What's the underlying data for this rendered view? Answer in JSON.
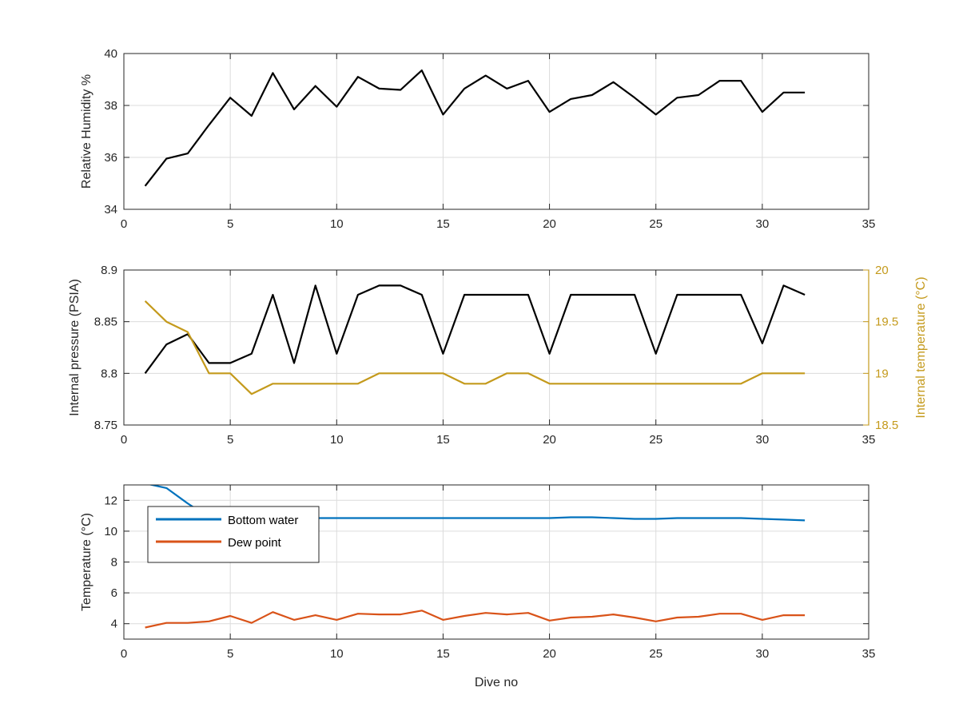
{
  "chart_data": [
    {
      "type": "line",
      "xlabel": "",
      "ylabel": "Relative Humidity %",
      "xlim": [
        0,
        35
      ],
      "ylim": [
        34,
        40
      ],
      "xticks": [
        0,
        5,
        10,
        15,
        20,
        25,
        30,
        35
      ],
      "yticks": [
        34,
        36,
        38,
        40
      ],
      "grid": true,
      "series": [
        {
          "axis": "left",
          "color": "#000000",
          "x": [
            1,
            2,
            3,
            4,
            5,
            6,
            7,
            8,
            9,
            10,
            11,
            12,
            13,
            14,
            15,
            16,
            17,
            18,
            19,
            20,
            21,
            22,
            23,
            24,
            25,
            26,
            27,
            28,
            29,
            30,
            31,
            32
          ],
          "values": [
            34.9,
            35.95,
            36.15,
            37.25,
            38.3,
            37.6,
            39.25,
            37.85,
            38.75,
            37.95,
            39.1,
            38.65,
            38.6,
            39.35,
            37.65,
            38.65,
            39.15,
            38.65,
            38.95,
            37.75,
            38.25,
            38.4,
            38.9,
            38.3,
            37.65,
            38.3,
            38.4,
            38.95,
            38.95,
            37.75,
            38.5,
            38.5
          ]
        }
      ]
    },
    {
      "type": "line",
      "xlabel": "",
      "ylabel": "Internal pressure (PSIA)",
      "ylabel_right": "Internal temperature (°C)",
      "xlim": [
        0,
        35
      ],
      "ylim": [
        8.75,
        8.9
      ],
      "ylim_right": [
        18.5,
        20
      ],
      "xticks": [
        0,
        5,
        10,
        15,
        20,
        25,
        30,
        35
      ],
      "yticks": [
        8.75,
        8.8,
        8.85,
        8.9
      ],
      "yticks_right": [
        18.5,
        19,
        19.5,
        20
      ],
      "ytick_labels": [
        "8.75",
        "8.8",
        "8.85",
        "8.9"
      ],
      "ytick_labels_right": [
        "18.5",
        "19",
        "19.5",
        "20"
      ],
      "grid": true,
      "series": [
        {
          "axis": "left",
          "color": "#000000",
          "x": [
            1,
            2,
            3,
            4,
            5,
            6,
            7,
            8,
            9,
            10,
            11,
            12,
            13,
            14,
            15,
            16,
            17,
            18,
            19,
            20,
            21,
            22,
            23,
            24,
            25,
            26,
            27,
            28,
            29,
            30,
            31,
            32
          ],
          "values": [
            8.8,
            8.828,
            8.838,
            8.81,
            8.81,
            8.819,
            8.876,
            8.81,
            8.885,
            8.819,
            8.876,
            8.885,
            8.885,
            8.876,
            8.819,
            8.876,
            8.876,
            8.876,
            8.876,
            8.819,
            8.876,
            8.876,
            8.876,
            8.876,
            8.819,
            8.876,
            8.876,
            8.876,
            8.876,
            8.829,
            8.885,
            8.876
          ]
        },
        {
          "axis": "right",
          "color": "#c49a1c",
          "x": [
            1,
            2,
            3,
            4,
            5,
            6,
            7,
            8,
            9,
            10,
            11,
            12,
            13,
            14,
            15,
            16,
            17,
            18,
            19,
            20,
            21,
            22,
            23,
            24,
            25,
            26,
            27,
            28,
            29,
            30,
            31,
            32
          ],
          "values": [
            19.7,
            19.5,
            19.4,
            19.0,
            19.0,
            18.8,
            18.9,
            18.9,
            18.9,
            18.9,
            18.9,
            19.0,
            19.0,
            19.0,
            19.0,
            18.9,
            18.9,
            19.0,
            19.0,
            18.9,
            18.9,
            18.9,
            18.9,
            18.9,
            18.9,
            18.9,
            18.9,
            18.9,
            18.9,
            19.0,
            19.0,
            19.0
          ]
        }
      ]
    },
    {
      "type": "line",
      "xlabel": "Dive no",
      "ylabel": "Temperature (°C)",
      "xlim": [
        0,
        35
      ],
      "ylim": [
        3,
        13
      ],
      "xticks": [
        0,
        5,
        10,
        15,
        20,
        25,
        30,
        35
      ],
      "yticks": [
        4,
        6,
        8,
        10,
        12
      ],
      "grid": true,
      "legend": "upper-left",
      "series": [
        {
          "name": "Bottom water",
          "axis": "left",
          "color": "#0072bd",
          "x": [
            1,
            2,
            3,
            4,
            5,
            6,
            7,
            8,
            9,
            10,
            11,
            12,
            13,
            14,
            15,
            16,
            17,
            18,
            19,
            20,
            21,
            22,
            23,
            24,
            25,
            26,
            27,
            28,
            29,
            30,
            31,
            32
          ],
          "values": [
            13.1,
            12.8,
            11.8,
            10.9,
            10.85,
            10.85,
            10.85,
            10.85,
            10.85,
            10.85,
            10.85,
            10.85,
            10.85,
            10.85,
            10.85,
            10.85,
            10.85,
            10.85,
            10.85,
            10.85,
            10.9,
            10.9,
            10.85,
            10.8,
            10.8,
            10.85,
            10.85,
            10.85,
            10.85,
            10.8,
            10.75,
            10.7
          ]
        },
        {
          "name": "Dew point",
          "axis": "left",
          "color": "#d95319",
          "x": [
            1,
            2,
            3,
            4,
            5,
            6,
            7,
            8,
            9,
            10,
            11,
            12,
            13,
            14,
            15,
            16,
            17,
            18,
            19,
            20,
            21,
            22,
            23,
            24,
            25,
            26,
            27,
            28,
            29,
            30,
            31,
            32
          ],
          "values": [
            3.75,
            4.05,
            4.05,
            4.15,
            4.5,
            4.05,
            4.75,
            4.25,
            4.55,
            4.25,
            4.65,
            4.6,
            4.6,
            4.85,
            4.25,
            4.5,
            4.7,
            4.6,
            4.7,
            4.2,
            4.4,
            4.45,
            4.6,
            4.4,
            4.15,
            4.4,
            4.45,
            4.65,
            4.65,
            4.25,
            4.55,
            4.55
          ]
        }
      ]
    }
  ]
}
